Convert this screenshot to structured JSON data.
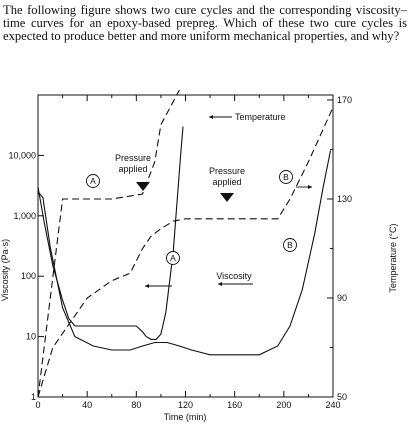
{
  "question": "The following figure shows two cure cycles and the corresponding viscosity–time curves for an epoxy-based prepreg. Which of these two cure cycles is expected to produce better and more uniform mechanical properties, and why?",
  "chart_data": {
    "type": "line",
    "xlabel": "Time (min)",
    "ylabel_left": "Viscosity (Pa·s)",
    "ylabel_right": "Temperature (°C)",
    "x_ticks": [
      0,
      40,
      80,
      120,
      160,
      200,
      240
    ],
    "xlim": [
      0,
      240
    ],
    "y_left_scale": "log",
    "y_left_ticks": [
      "1",
      "10",
      "100",
      "1,000",
      "10,000"
    ],
    "y_left_values": [
      1,
      10,
      100,
      1000,
      10000
    ],
    "ylim_left": [
      1,
      100000
    ],
    "y_right_ticks": [
      50,
      90,
      130,
      170
    ],
    "ylim_right": [
      50,
      172
    ],
    "series": [
      {
        "name": "A",
        "kind": "Temperature",
        "style": "dashed",
        "axis": "right",
        "x": [
          0,
          15,
          20,
          60,
          85,
          95,
          100,
          115
        ],
        "y": [
          50,
          110,
          130,
          130,
          132,
          145,
          160,
          175
        ]
      },
      {
        "name": "A",
        "kind": "Viscosity",
        "style": "solid",
        "axis": "left",
        "x": [
          0,
          5,
          12,
          20,
          25,
          30,
          38,
          50,
          60,
          70,
          80,
          85,
          88,
          92,
          96,
          100,
          104,
          110,
          116,
          118
        ],
        "y": [
          3000,
          800,
          150,
          40,
          20,
          15,
          15,
          15,
          15,
          15,
          15,
          12,
          10,
          9,
          9,
          11,
          25,
          250,
          10000,
          30000
        ]
      },
      {
        "name": "B",
        "kind": "Temperature",
        "style": "dashed",
        "axis": "right",
        "x": [
          0,
          12,
          40,
          60,
          75,
          85,
          92,
          100,
          110,
          120,
          140,
          170,
          195,
          205,
          220,
          240
        ],
        "y": [
          50,
          70,
          90,
          97,
          100,
          110,
          115,
          118,
          121,
          122,
          122,
          122,
          122,
          130,
          145,
          167
        ]
      },
      {
        "name": "B",
        "kind": "Viscosity",
        "style": "solid",
        "axis": "left",
        "x": [
          0,
          4,
          10,
          20,
          30,
          45,
          60,
          75,
          85,
          95,
          105,
          115,
          125,
          140,
          160,
          180,
          195,
          205,
          215,
          225,
          232,
          238
        ],
        "y": [
          2500,
          2000,
          300,
          30,
          10,
          7,
          6,
          6,
          7,
          8,
          8,
          7,
          6,
          5,
          5,
          5,
          7,
          15,
          60,
          500,
          3000,
          12000
        ]
      }
    ],
    "annotations": {
      "temperature": "Temperature",
      "pressure_a": [
        "Pressure",
        "applied"
      ],
      "pressure_b": [
        "Pressure",
        "applied"
      ],
      "viscosity": "Viscosity",
      "circle_a": "A",
      "circle_b": "B"
    },
    "grid": false
  },
  "clipped_left_label": "Viscosity (Pa·s)"
}
